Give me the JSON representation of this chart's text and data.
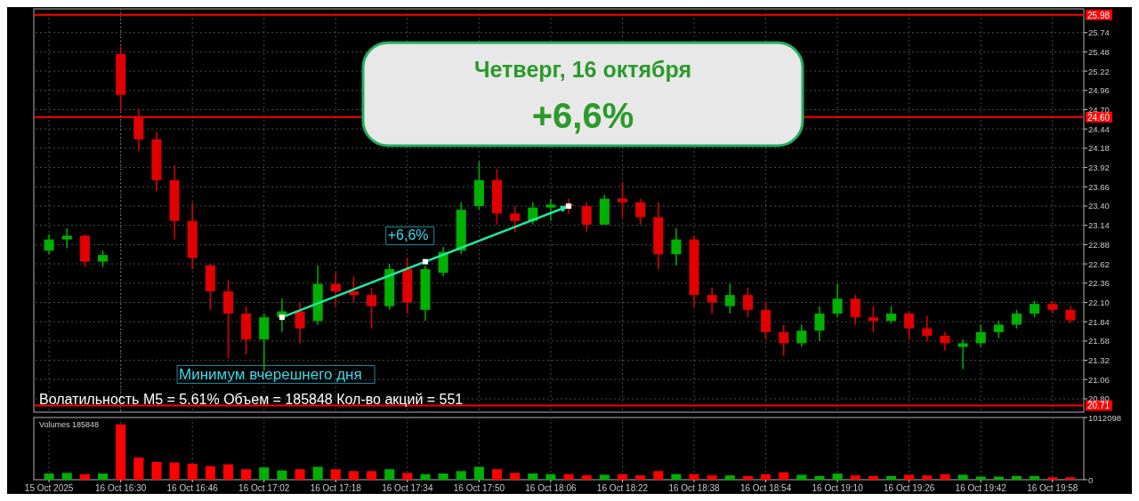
{
  "chart_data": [
    {
      "type": "candlestick",
      "title": "Четверг, 16 октября",
      "subtitle": "+6,6%",
      "categories": [
        "15 Oct 2025",
        null,
        null,
        null,
        "16 Oct 16:30",
        null,
        null,
        null,
        "16 Oct 16:46",
        null,
        null,
        null,
        "16 Oct 17:02",
        null,
        null,
        null,
        "16 Oct 17:18",
        null,
        null,
        null,
        "16 Oct 17:34",
        null,
        null,
        null,
        "16 Oct 17:50",
        null,
        null,
        null,
        "16 Oct 18:06",
        null,
        null,
        null,
        "16 Oct 18:22",
        null,
        null,
        null,
        "16 Oct 18:38",
        null,
        null,
        null,
        "16 Oct 18:54",
        null,
        null,
        null,
        "16 Oct 19:10",
        null,
        null,
        null,
        "16 Oct 19:26",
        null,
        null,
        null,
        "16 Oct 19:42",
        null,
        null,
        null,
        "16 Oct 19:58",
        null
      ],
      "ohlc": [
        [
          22.8,
          23.02,
          22.75,
          22.95
        ],
        [
          22.95,
          23.1,
          22.83,
          23.0
        ],
        [
          23.0,
          23.02,
          22.58,
          22.65
        ],
        [
          22.65,
          22.8,
          22.58,
          22.74
        ],
        [
          25.45,
          25.55,
          24.68,
          24.9
        ],
        [
          24.6,
          24.7,
          24.15,
          24.3
        ],
        [
          24.3,
          24.4,
          23.6,
          23.75
        ],
        [
          23.75,
          23.95,
          22.95,
          23.2
        ],
        [
          23.2,
          23.45,
          22.55,
          22.7
        ],
        [
          22.6,
          22.62,
          22.0,
          22.25
        ],
        [
          22.25,
          22.4,
          21.35,
          21.95
        ],
        [
          21.95,
          22.05,
          21.4,
          21.6
        ],
        [
          21.6,
          21.95,
          21.18,
          21.9
        ],
        [
          21.9,
          22.15,
          21.7,
          21.98
        ],
        [
          21.98,
          22.1,
          21.55,
          21.75
        ],
        [
          21.85,
          22.6,
          21.8,
          22.35
        ],
        [
          22.35,
          22.5,
          22.05,
          22.25
        ],
        [
          22.25,
          22.45,
          22.1,
          22.2
        ],
        [
          22.2,
          22.3,
          21.75,
          22.05
        ],
        [
          22.05,
          22.62,
          22.0,
          22.55
        ],
        [
          22.55,
          22.7,
          21.95,
          22.1
        ],
        [
          22.0,
          22.6,
          21.85,
          22.55
        ],
        [
          22.5,
          22.85,
          22.45,
          22.78
        ],
        [
          22.8,
          23.45,
          22.75,
          23.35
        ],
        [
          23.4,
          24.0,
          23.35,
          23.75
        ],
        [
          23.75,
          23.9,
          23.15,
          23.3
        ],
        [
          23.3,
          23.4,
          23.05,
          23.2
        ],
        [
          23.2,
          23.45,
          23.15,
          23.38
        ],
        [
          23.38,
          23.5,
          23.2,
          23.42
        ],
        [
          23.42,
          23.5,
          23.3,
          23.4
        ],
        [
          23.4,
          23.45,
          23.05,
          23.15
        ],
        [
          23.15,
          23.55,
          23.15,
          23.5
        ],
        [
          23.5,
          23.72,
          23.25,
          23.45
        ],
        [
          23.45,
          23.5,
          23.15,
          23.25
        ],
        [
          23.25,
          23.45,
          22.55,
          22.75
        ],
        [
          22.75,
          23.1,
          22.6,
          22.95
        ],
        [
          22.95,
          23.0,
          22.05,
          22.2
        ],
        [
          22.2,
          22.3,
          21.95,
          22.1
        ],
        [
          22.05,
          22.35,
          21.95,
          22.2
        ],
        [
          22.2,
          22.3,
          21.9,
          22.0
        ],
        [
          22.0,
          22.1,
          21.6,
          21.7
        ],
        [
          21.7,
          21.8,
          21.38,
          21.55
        ],
        [
          21.55,
          21.8,
          21.5,
          21.72
        ],
        [
          21.72,
          22.05,
          21.58,
          21.95
        ],
        [
          21.95,
          22.35,
          21.9,
          22.15
        ],
        [
          22.15,
          22.2,
          21.8,
          21.9
        ],
        [
          21.9,
          22.05,
          21.7,
          21.85
        ],
        [
          21.85,
          22.05,
          21.82,
          21.95
        ],
        [
          21.95,
          21.98,
          21.6,
          21.75
        ],
        [
          21.75,
          21.92,
          21.58,
          21.65
        ],
        [
          21.65,
          21.7,
          21.45,
          21.55
        ],
        [
          21.5,
          21.6,
          21.2,
          21.55
        ],
        [
          21.55,
          21.8,
          21.5,
          21.7
        ],
        [
          21.7,
          21.85,
          21.62,
          21.8
        ],
        [
          21.8,
          22.0,
          21.75,
          21.95
        ],
        [
          21.95,
          22.12,
          21.9,
          22.08
        ],
        [
          22.08,
          22.12,
          21.95,
          22.0
        ],
        [
          22.0,
          22.05,
          21.82,
          21.86
        ]
      ],
      "ylim": [
        20.62,
        26.06
      ],
      "yticks": [
        {
          "value": 20.8,
          "label": "20.80"
        },
        21.06,
        21.32,
        21.58,
        21.84,
        {
          "value": 22.1,
          "label": "22.10"
        },
        22.36,
        22.62,
        22.88,
        23.14,
        {
          "value": 23.4,
          "label": "23.40"
        },
        23.66,
        23.92,
        24.18,
        24.44,
        {
          "value": 24.7,
          "label": "24.70"
        },
        24.96,
        25.22,
        25.48,
        25.74
      ],
      "tick_labels": "y",
      "grid": true,
      "ref_lines": [
        {
          "axis": "y",
          "value": 25.98,
          "label": "25.98",
          "color": "#ff0000"
        },
        {
          "axis": "y",
          "value": 24.6,
          "label": "24.60",
          "color": "#ff0000"
        },
        {
          "axis": "y",
          "value": 20.71,
          "label": "20.71",
          "color": "#ff0000"
        },
        {
          "axis": "x",
          "value": "16 Oct 16:30",
          "color": "#8a8a8a",
          "line_style": "dotted"
        }
      ],
      "annotations": [
        "+6,6%",
        "Минимум вчерешнего дня",
        "Волатильность M5 = 5.61% Объем = 185848 Кол-во акций = 551"
      ]
    },
    {
      "type": "bar",
      "title": "Volumes 185848",
      "categories": [
        "15 Oct 2025",
        null,
        null,
        null,
        "16 Oct 16:30",
        null,
        null,
        null,
        "16 Oct 16:46",
        null,
        null,
        null,
        "16 Oct 17:02",
        null,
        null,
        null,
        "16 Oct 17:18",
        null,
        null,
        null,
        "16 Oct 17:34",
        null,
        null,
        null,
        "16 Oct 17:50",
        null,
        null,
        null,
        "16 Oct 18:06",
        null,
        null,
        null,
        "16 Oct 18:22",
        null,
        null,
        null,
        "16 Oct 18:38",
        null,
        null,
        null,
        "16 Oct 18:54",
        null,
        null,
        null,
        "16 Oct 19:10",
        null,
        null,
        null,
        "16 Oct 19:26",
        null,
        null,
        null,
        "16 Oct 19:42",
        null,
        null,
        null,
        "16 Oct 19:58",
        null
      ],
      "values": [
        100000,
        110000,
        90000,
        100000,
        900000,
        360000,
        290000,
        280000,
        260000,
        220000,
        250000,
        170000,
        200000,
        150000,
        170000,
        210000,
        170000,
        140000,
        140000,
        170000,
        110000,
        90000,
        100000,
        140000,
        210000,
        170000,
        110000,
        100000,
        90000,
        90000,
        70000,
        80000,
        90000,
        70000,
        140000,
        90000,
        90000,
        70000,
        70000,
        60000,
        90000,
        120000,
        80000,
        60000,
        100000,
        70000,
        60000,
        60000,
        80000,
        70000,
        90000,
        80000,
        50000,
        50000,
        60000,
        60000,
        40000,
        40000
      ],
      "colors": [
        "#00b000",
        "#00b000",
        "#ff0000",
        "#00b000",
        "#ff0000",
        "#ff0000",
        "#ff0000",
        "#ff0000",
        "#ff0000",
        "#ff0000",
        "#ff0000",
        "#ff0000",
        "#00b000",
        "#00b000",
        "#ff0000",
        "#00b000",
        "#ff0000",
        "#ff0000",
        "#ff0000",
        "#00b000",
        "#ff0000",
        "#00b000",
        "#00b000",
        "#00b000",
        "#00b000",
        "#ff0000",
        "#ff0000",
        "#00b000",
        "#00b000",
        "#ff0000",
        "#ff0000",
        "#00b000",
        "#ff0000",
        "#ff0000",
        "#ff0000",
        "#00b000",
        "#ff0000",
        "#ff0000",
        "#00b000",
        "#ff0000",
        "#ff0000",
        "#ff0000",
        "#00b000",
        "#00b000",
        "#00b000",
        "#ff0000",
        "#ff0000",
        "#00b000",
        "#ff0000",
        "#ff0000",
        "#ff0000",
        "#00b000",
        "#00b000",
        "#00b000",
        "#00b000",
        "#00b000",
        "#ff0000",
        "#ff0000"
      ],
      "ylim": [
        0,
        1012098
      ],
      "yticks": [
        0,
        1012098
      ],
      "grid": "x"
    }
  ]
}
